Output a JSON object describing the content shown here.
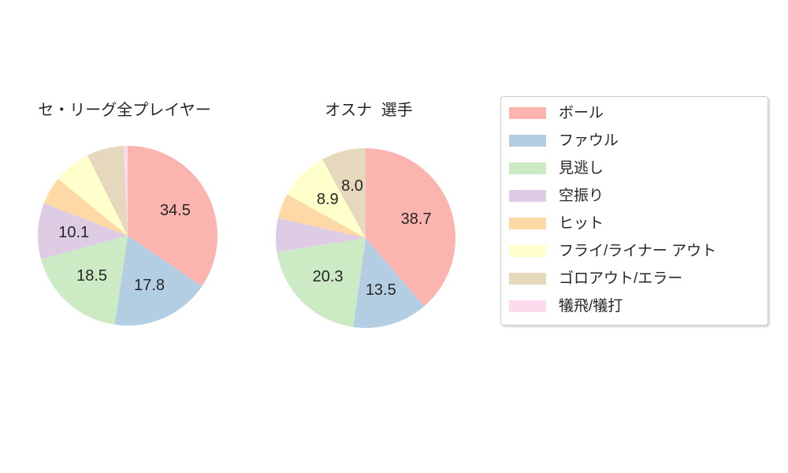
{
  "figure": {
    "background_color": "#ffffff",
    "text_color": "#262626",
    "legend_border_color": "#cbcbcb"
  },
  "legend": {
    "items": [
      {
        "label": "ボール",
        "color": "#fbb4ae"
      },
      {
        "label": "ファウル",
        "color": "#b3cde3"
      },
      {
        "label": "見逃し",
        "color": "#ccebc5"
      },
      {
        "label": "空振り",
        "color": "#decbe4"
      },
      {
        "label": "ヒット",
        "color": "#fed9a6"
      },
      {
        "label": "フライ/ライナー アウト",
        "color": "#ffffcc"
      },
      {
        "label": "ゴロアウト/エラー",
        "color": "#e5d8bd"
      },
      {
        "label": "犠飛/犠打",
        "color": "#fddaec"
      }
    ],
    "position": "right"
  },
  "chart_data": [
    {
      "type": "pie",
      "title": "セ・リーグ全プレイヤー",
      "categories": [
        "ボール",
        "ファウル",
        "見逃し",
        "空振り",
        "ヒット",
        "フライ/ライナー アウト",
        "ゴロアウト/エラー",
        "犠飛/犠打"
      ],
      "values": [
        34.5,
        17.8,
        18.5,
        10.1,
        5.0,
        6.7,
        6.7,
        0.7
      ],
      "visible_value_labels": [
        "34.5",
        "17.8",
        "18.5",
        "10.1"
      ],
      "colors": [
        "#fbb4ae",
        "#b3cde3",
        "#ccebc5",
        "#decbe4",
        "#fed9a6",
        "#ffffcc",
        "#e5d8bd",
        "#fddaec"
      ],
      "start_angle": "top",
      "direction": "clockwise",
      "label_threshold": 8.0,
      "label_distance": 0.6
    },
    {
      "type": "pie",
      "title": "オスナ 選手",
      "categories": [
        "ボール",
        "ファウル",
        "見逃し",
        "空振り",
        "ヒット",
        "フライ/ライナー アウト",
        "ゴロアウト/エラー",
        "犠飛/犠打"
      ],
      "values": [
        38.7,
        13.5,
        20.3,
        6.1,
        4.5,
        8.9,
        8.0,
        0.0
      ],
      "visible_value_labels": [
        "38.7",
        "13.5",
        "20.3",
        "8.9",
        "8.0"
      ],
      "colors": [
        "#fbb4ae",
        "#b3cde3",
        "#ccebc5",
        "#decbe4",
        "#fed9a6",
        "#ffffcc",
        "#e5d8bd",
        "#fddaec"
      ],
      "start_angle": "top",
      "direction": "clockwise",
      "label_threshold": 8.0,
      "label_distance": 0.6
    }
  ]
}
